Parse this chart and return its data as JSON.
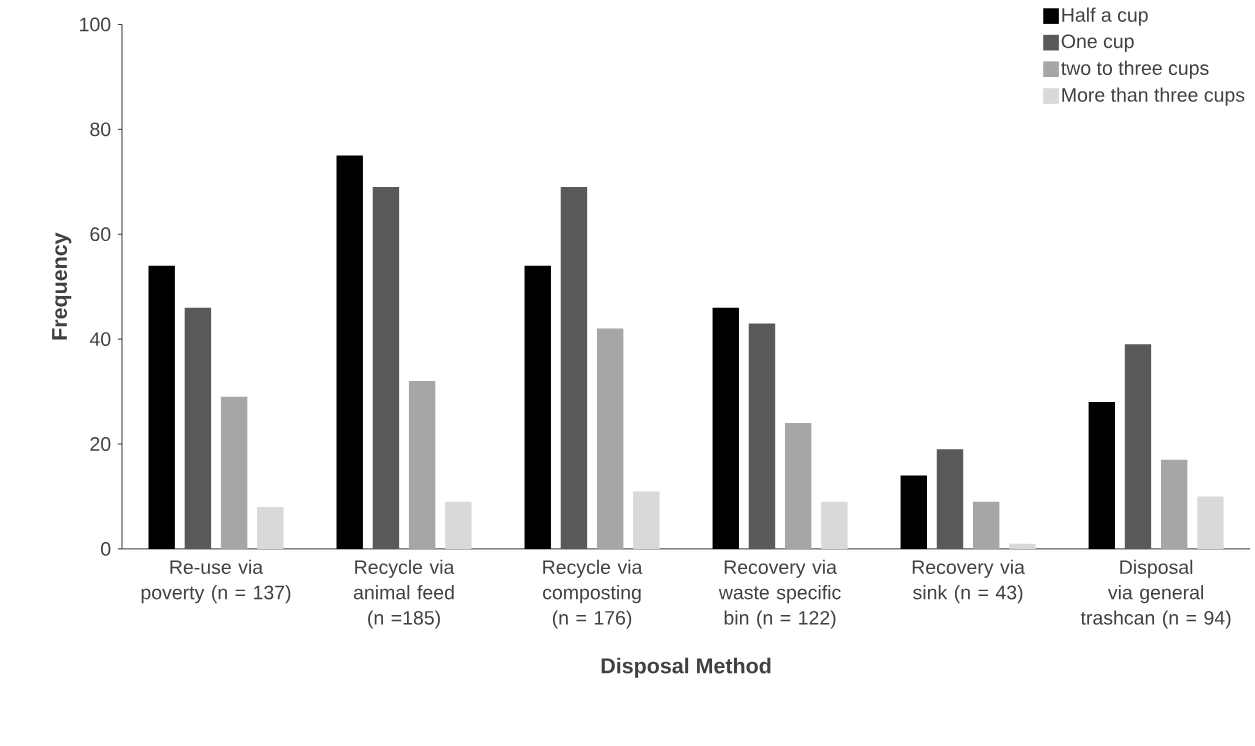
{
  "chart_data": {
    "type": "bar",
    "xlabel": "Disposal Method",
    "ylabel": "Frequency",
    "categories": [
      "Re-use via poverty (n = 137)",
      "Recycle via animal feed (n =185)",
      "Recycle via composting (n = 176)",
      "Recovery via waste specific bin (n = 122)",
      "Recovery via sink (n = 43)",
      "Disposal via general trashcan (n = 94)"
    ],
    "series": [
      {
        "name": "Half a cup",
        "color": "#000000",
        "values": [
          54,
          75,
          54,
          46,
          14,
          28
        ]
      },
      {
        "name": "One cup",
        "color": "#595959",
        "values": [
          46,
          69,
          69,
          43,
          19,
          39
        ]
      },
      {
        "name": "two to three cups",
        "color": "#a6a6a6",
        "values": [
          29,
          32,
          42,
          24,
          9,
          17
        ]
      },
      {
        "name": "More than three cups",
        "color": "#d9d9d9",
        "values": [
          8,
          9,
          11,
          9,
          1,
          10
        ]
      }
    ],
    "ylim": [
      0,
      100
    ],
    "yticks": [
      0,
      20,
      40,
      60,
      80,
      100
    ],
    "grid": false,
    "legend": "top right"
  }
}
